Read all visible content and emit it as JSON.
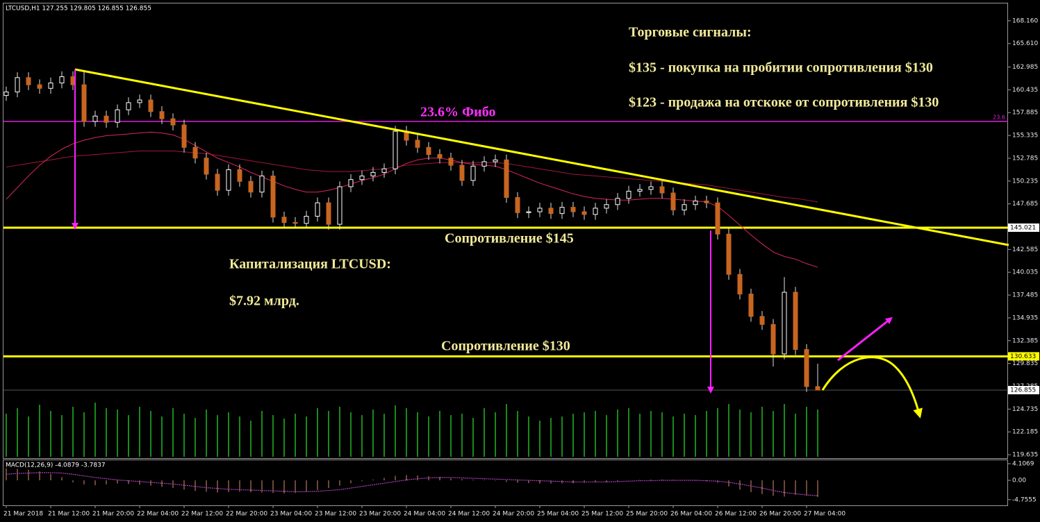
{
  "chart_data": {
    "type": "candlestick",
    "header": "LTCUSD,H1  127.255 129.805 126.855 126.855",
    "categories": [
      "21 Mar 2018",
      null,
      null,
      null,
      "21 Mar 12:00",
      null,
      null,
      null,
      "21 Mar 20:00",
      null,
      null,
      null,
      "22 Mar 04:00",
      null,
      null,
      null,
      "22 Mar 12:00",
      null,
      null,
      null,
      "22 Mar 20:00",
      null,
      null,
      null,
      "23 Mar 04:00",
      null,
      null,
      null,
      "23 Mar 12:00",
      null,
      null,
      null,
      "23 Mar 20:00",
      null,
      null,
      null,
      "24 Mar 04:00",
      null,
      null,
      null,
      "24 Mar 12:00",
      null,
      null,
      null,
      "24 Mar 20:00",
      null,
      null,
      null,
      "25 Mar 04:00",
      null,
      null,
      null,
      "25 Mar 12:00",
      null,
      null,
      null,
      "25 Mar 20:00",
      null,
      null,
      null,
      "26 Mar 04:00",
      null,
      null,
      null,
      "26 Mar 12:00",
      null,
      null,
      null,
      "26 Mar 20:00",
      null,
      null,
      null,
      "27 Mar 04:00",
      null
    ],
    "open": [
      159.8,
      160.2,
      161.8,
      161.0,
      160.6,
      161.2,
      161.9,
      161.0,
      156.9,
      157.5,
      156.8,
      158.2,
      159.0,
      159.3,
      158.0,
      157.2,
      156.5,
      154.0,
      152.8,
      151.0,
      149.2,
      151.5,
      150.2,
      149.0,
      150.8,
      146.2,
      145.6,
      145.5,
      146.3,
      147.8,
      145.4,
      149.6,
      150.4,
      150.8,
      151.2,
      151.6,
      155.8,
      154.8,
      154.0,
      153.2,
      152.8,
      152.0,
      150.3,
      151.9,
      152.4,
      152.6,
      148.4,
      146.7,
      146.8,
      147.2,
      146.6,
      147.3,
      146.8,
      146.5,
      147.2,
      147.6,
      148.3,
      149.1,
      149.3,
      149.6,
      148.9,
      147.0,
      147.6,
      148.0,
      147.8,
      144.3,
      139.8,
      137.6,
      135.1,
      134.2,
      130.9,
      137.8,
      131.4,
      127.255
    ],
    "high": [
      160.8,
      162.4,
      162.4,
      161.6,
      161.8,
      162.5,
      162.5,
      162.6,
      158.1,
      158.1,
      158.8,
      159.6,
      159.9,
      159.9,
      158.6,
      157.8,
      157.1,
      154.6,
      153.4,
      151.6,
      152.1,
      152.1,
      150.8,
      151.4,
      151.4,
      146.8,
      146.2,
      146.9,
      148.4,
      148.4,
      150.2,
      151.0,
      151.4,
      151.8,
      152.2,
      156.4,
      156.4,
      155.4,
      154.6,
      153.8,
      153.4,
      152.6,
      152.5,
      153.0,
      153.2,
      153.2,
      149.0,
      147.4,
      147.8,
      147.8,
      147.9,
      147.9,
      147.4,
      147.8,
      148.2,
      148.9,
      149.7,
      149.9,
      150.2,
      150.2,
      149.5,
      148.2,
      148.6,
      148.6,
      148.4,
      144.9,
      140.4,
      138.2,
      135.7,
      134.8,
      139.5,
      138.4,
      132.0,
      129.805
    ],
    "low": [
      159.2,
      159.6,
      160.4,
      160.0,
      160.0,
      160.6,
      160.4,
      156.3,
      156.3,
      156.2,
      156.2,
      157.6,
      158.4,
      157.4,
      156.6,
      155.9,
      153.4,
      152.2,
      150.4,
      148.6,
      148.6,
      149.6,
      148.4,
      148.4,
      145.6,
      145.0,
      144.9,
      144.9,
      145.7,
      144.8,
      144.8,
      149.0,
      149.8,
      150.2,
      150.6,
      151.0,
      154.2,
      153.4,
      152.6,
      152.2,
      151.4,
      149.7,
      149.7,
      151.3,
      151.8,
      147.8,
      146.1,
      146.1,
      146.2,
      146.0,
      146.0,
      146.2,
      145.9,
      145.9,
      146.6,
      147.0,
      147.7,
      148.5,
      148.7,
      148.3,
      146.4,
      146.4,
      147.0,
      147.2,
      143.7,
      139.2,
      137.0,
      134.5,
      133.6,
      129.5,
      130.3,
      130.8,
      126.655,
      126.855
    ],
    "close": [
      160.2,
      161.8,
      161.0,
      160.6,
      161.2,
      161.9,
      161.0,
      156.9,
      157.5,
      156.8,
      158.2,
      159.0,
      159.3,
      158.0,
      157.2,
      156.5,
      154.0,
      152.8,
      151.0,
      149.2,
      151.5,
      150.2,
      149.0,
      150.8,
      146.2,
      145.6,
      145.5,
      146.3,
      147.8,
      145.4,
      149.6,
      150.4,
      150.8,
      151.2,
      151.6,
      155.8,
      154.8,
      154.0,
      153.2,
      152.8,
      152.0,
      150.3,
      151.9,
      152.4,
      152.6,
      148.4,
      146.7,
      146.8,
      147.2,
      146.6,
      147.3,
      146.8,
      146.5,
      147.2,
      147.6,
      148.3,
      149.1,
      149.3,
      149.6,
      148.9,
      147.0,
      147.6,
      148.0,
      147.8,
      144.3,
      139.8,
      137.6,
      135.1,
      134.2,
      130.9,
      137.8,
      131.4,
      127.255,
      126.855
    ],
    "up_color": "#ffffff",
    "down_color": "#c8651f",
    "ma_fast": {
      "color": "#d8285a",
      "values": [
        148.2,
        149.5,
        150.8,
        152.0,
        153.0,
        153.8,
        154.4,
        154.8,
        155.1,
        155.3,
        155.4,
        155.5,
        155.6,
        155.7,
        155.6,
        155.4,
        154.9,
        154.2,
        153.5,
        152.8,
        152.3,
        151.8,
        151.2,
        150.7,
        150.2,
        149.7,
        149.3,
        149.0,
        149.0,
        149.2,
        149.5,
        149.9,
        150.3,
        150.6,
        151.0,
        151.6,
        152.2,
        152.6,
        152.8,
        152.8,
        152.6,
        152.3,
        152.1,
        152.0,
        151.9,
        151.5,
        151.0,
        150.5,
        150.0,
        149.6,
        149.2,
        148.8,
        148.5,
        148.3,
        148.2,
        148.1,
        148.1,
        148.2,
        148.3,
        148.3,
        148.2,
        148.1,
        148.0,
        147.9,
        147.4,
        146.4,
        145.3,
        144.2,
        143.2,
        142.3,
        141.8,
        141.5,
        141.0,
        140.6
      ]
    },
    "ma_slow": {
      "color": "#a0183c",
      "values": [
        151.8,
        152.0,
        152.2,
        152.4,
        152.6,
        152.8,
        153.0,
        153.1,
        153.2,
        153.3,
        153.4,
        153.5,
        153.6,
        153.6,
        153.6,
        153.6,
        153.5,
        153.4,
        153.3,
        153.1,
        152.9,
        152.7,
        152.5,
        152.3,
        152.1,
        151.9,
        151.7,
        151.5,
        151.4,
        151.3,
        151.3,
        151.3,
        151.4,
        151.5,
        151.6,
        151.8,
        152.0,
        152.1,
        152.2,
        152.3,
        152.3,
        152.3,
        152.3,
        152.3,
        152.3,
        152.2,
        152.0,
        151.8,
        151.6,
        151.4,
        151.2,
        151.0,
        150.9,
        150.8,
        150.7,
        150.6,
        150.5,
        150.4,
        150.3,
        150.2,
        150.1,
        150.0,
        149.9,
        149.8,
        149.6,
        149.4,
        149.2,
        149.0,
        148.8,
        148.6,
        148.4,
        148.3,
        148.1,
        147.9
      ]
    },
    "volumes": {
      "color": "#22b822",
      "values": [
        62,
        70,
        58,
        75,
        66,
        60,
        72,
        64,
        78,
        70,
        68,
        60,
        72,
        66,
        58,
        70,
        62,
        56,
        68,
        60,
        64,
        58,
        52,
        66,
        60,
        55,
        62,
        58,
        70,
        66,
        72,
        64,
        60,
        68,
        62,
        74,
        70,
        64,
        58,
        66,
        60,
        62,
        56,
        70,
        64,
        76,
        66,
        58,
        52,
        56,
        58,
        62,
        64,
        66,
        60,
        68,
        70,
        62,
        66,
        64,
        58,
        62,
        60,
        66,
        70,
        76,
        68,
        64,
        72,
        66,
        76,
        62,
        72,
        68
      ]
    },
    "ylim": [
      119.25,
      170.09
    ],
    "yticks": [
      {
        "value": 168.16,
        "label": "168.160"
      },
      {
        "value": 165.61,
        "label": "165.610"
      },
      162.985,
      160.435,
      157.885,
      155.335,
      152.785,
      150.235,
      147.685,
      142.585,
      140.035,
      137.485,
      134.935,
      132.385,
      129.835,
      127.285,
      124.735,
      122.185,
      119.635
    ],
    "levels": [
      {
        "price": 145.021,
        "color": "#ffff00",
        "label_bg": "#ffffff"
      },
      {
        "price": 130.633,
        "color": "#ffff00",
        "label_bg": "#ffff00"
      }
    ],
    "last_price": {
      "price": 126.855,
      "label_bg": "#ffffff"
    },
    "fibo": {
      "price": 156.9,
      "label": "23.6",
      "color": "#e020e0"
    },
    "annotations": [
      "Торговые сигналы:",
      "$135 - покупка на пробитии сопротивления $130",
      "$123 - продажа на отскоке от сопротивления $130",
      "23.6% Фибо",
      "Сопротивление $145",
      "Капитализация LTCUSD:",
      "$7.92 млрд.",
      "Сопротивление $130"
    ],
    "macd": {
      "title": "MACD(12,26,9) -4.0879 -3.7837",
      "ylim": [
        -6.16,
        5.13
      ],
      "yticks": [
        4.1069,
        {
          "value": 0,
          "label": "0.00"
        },
        -4.7555
      ],
      "histogram_color": "#d8906a",
      "signal_color": "#b040c0",
      "histogram": [
        3.0,
        2.8,
        2.6,
        2.2,
        1.6,
        0.8,
        -0.5,
        -1.0,
        -1.2,
        -1.0,
        -0.8,
        -0.9,
        -1.1,
        -1.3,
        -1.6,
        -1.9,
        -2.3,
        -2.6,
        -2.8,
        -3.0,
        -2.9,
        -2.8,
        -2.9,
        -3.0,
        -3.1,
        -3.2,
        -3.1,
        -2.8,
        -2.4,
        -1.9,
        -1.3,
        -0.7,
        -0.2,
        0.2,
        0.6,
        1.1,
        1.3,
        1.2,
        1.0,
        0.8,
        0.5,
        0.3,
        0.2,
        0.1,
        -0.1,
        -0.4,
        -0.6,
        -0.7,
        -0.8,
        -0.8,
        -0.7,
        -0.7,
        -0.6,
        -0.5,
        -0.4,
        -0.2,
        0.0,
        0.1,
        0.2,
        0.2,
        0.1,
        0.0,
        -0.1,
        -0.2,
        -0.6,
        -1.5,
        -2.3,
        -2.9,
        -3.4,
        -3.8,
        -4.0,
        -3.6,
        -3.8,
        -4.0879
      ],
      "signal": [
        1.5,
        1.7,
        1.8,
        1.9,
        1.9,
        1.8,
        1.5,
        1.1,
        0.7,
        0.4,
        0.1,
        -0.1,
        -0.3,
        -0.5,
        -0.7,
        -0.9,
        -1.2,
        -1.5,
        -1.8,
        -2.0,
        -2.2,
        -2.3,
        -2.4,
        -2.5,
        -2.6,
        -2.7,
        -2.8,
        -2.8,
        -2.7,
        -2.5,
        -2.3,
        -1.9,
        -1.5,
        -1.1,
        -0.7,
        -0.3,
        0.1,
        0.4,
        0.6,
        0.7,
        0.7,
        0.6,
        0.5,
        0.4,
        0.3,
        0.2,
        0.1,
        0.0,
        -0.1,
        -0.2,
        -0.3,
        -0.4,
        -0.4,
        -0.4,
        -0.4,
        -0.3,
        -0.2,
        -0.1,
        -0.1,
        0.0,
        0.0,
        0.0,
        0.0,
        -0.1,
        -0.2,
        -0.5,
        -0.9,
        -1.4,
        -1.9,
        -2.5,
        -3.0,
        -3.3,
        -3.6,
        -3.7837
      ]
    }
  }
}
